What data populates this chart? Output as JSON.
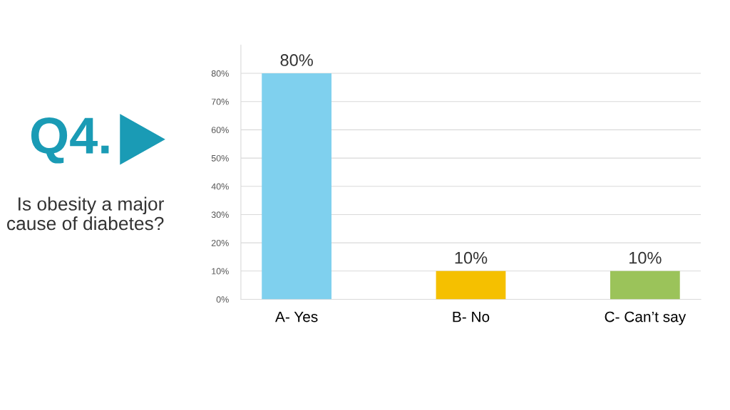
{
  "chart_data": {
    "type": "bar",
    "title": "Q4.",
    "subtitle": "Is obesity a major cause of diabetes?",
    "categories": [
      "A- Yes",
      "B- No",
      "C- Can’t say"
    ],
    "values": [
      80,
      10,
      10
    ],
    "colors": [
      "#7fd0ee",
      "#f5c000",
      "#9bc35a"
    ],
    "value_labels": [
      "80%",
      "10%",
      "10%"
    ],
    "ylim": [
      0,
      90
    ],
    "yticks": [
      {
        "value": 0,
        "label": "0%"
      },
      {
        "value": 10,
        "label": "10%"
      },
      {
        "value": 20,
        "label": "20%"
      },
      {
        "value": 30,
        "label": "30%"
      },
      {
        "value": 40,
        "label": "40%"
      },
      {
        "value": 50,
        "label": "50%"
      },
      {
        "value": 60,
        "label": "60%"
      },
      {
        "value": 70,
        "label": "70%"
      },
      {
        "value": 80,
        "label": "80%"
      }
    ],
    "grid": "y",
    "legend": false
  }
}
